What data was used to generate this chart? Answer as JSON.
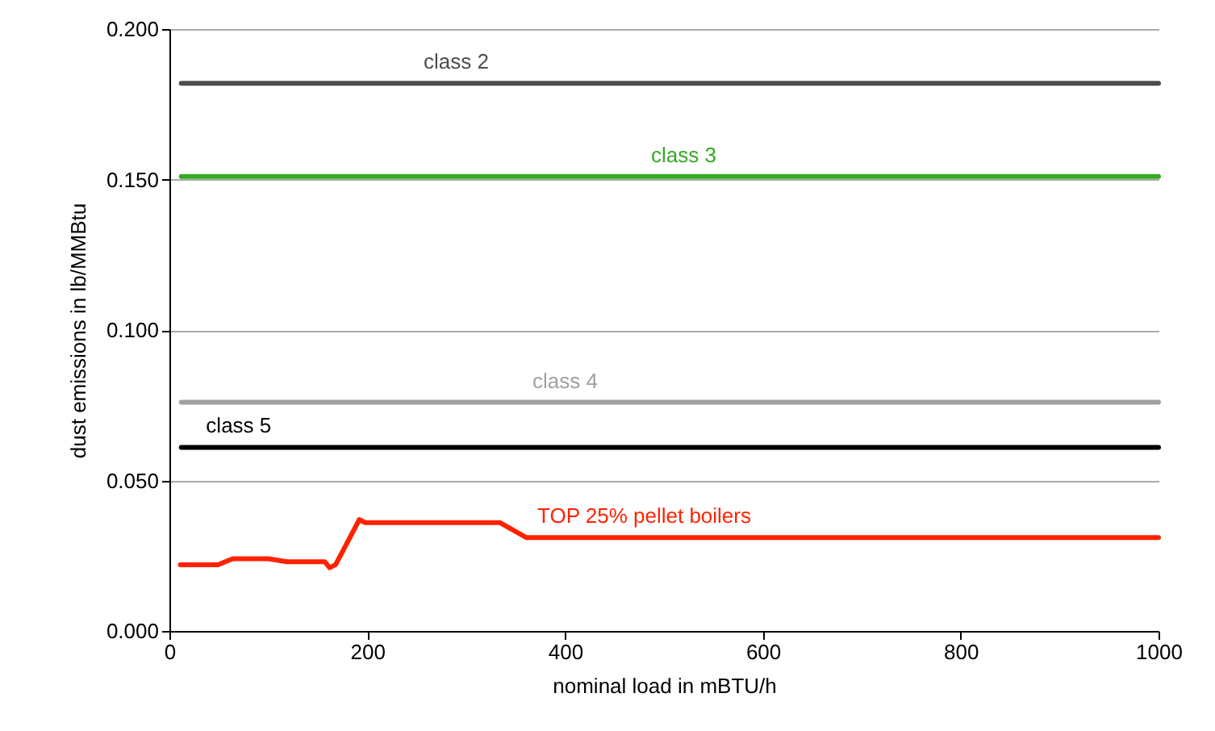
{
  "chart_data": {
    "type": "line",
    "xlabel": "nominal load in mBTU/h",
    "ylabel": "dust emissions in lb/MMBtu",
    "xlim": [
      0,
      1000
    ],
    "xticks": [
      0,
      200,
      400,
      600,
      800,
      1000
    ],
    "ylim": [
      0,
      0.2
    ],
    "yticks": [
      {
        "value": 0,
        "label": "0.000"
      },
      {
        "value": 0.05,
        "label": "0.050"
      },
      {
        "value": 0.1,
        "label": "0.100"
      },
      {
        "value": 0.15,
        "label": "0.150"
      },
      {
        "value": 0.2,
        "label": "0.200"
      }
    ],
    "grid": "y",
    "marker": "none",
    "line_style": "solid",
    "series": [
      {
        "name": "class 2",
        "color": "#4d4d4d",
        "x": [
          12,
          1000
        ],
        "values": [
          0.182,
          0.182
        ]
      },
      {
        "name": "class 3",
        "color": "#33aa22",
        "x": [
          12,
          1000
        ],
        "values": [
          0.151,
          0.151
        ]
      },
      {
        "name": "class 4",
        "color": "#a0a0a0",
        "x": [
          12,
          1000
        ],
        "values": [
          0.076,
          0.076
        ]
      },
      {
        "name": "class 5",
        "color": "#000000",
        "x": [
          12,
          1000
        ],
        "values": [
          0.061,
          0.061
        ]
      },
      {
        "name": "TOP 25% pellet boilers",
        "color": "#ff2200",
        "x": [
          11,
          49,
          64,
          100,
          119,
          157,
          162,
          168,
          192,
          198,
          334,
          361,
          372,
          1000
        ],
        "values": [
          0.022,
          0.022,
          0.024,
          0.024,
          0.023,
          0.023,
          0.021,
          0.022,
          0.037,
          0.036,
          0.036,
          0.031,
          0.031,
          0.031
        ]
      }
    ]
  }
}
